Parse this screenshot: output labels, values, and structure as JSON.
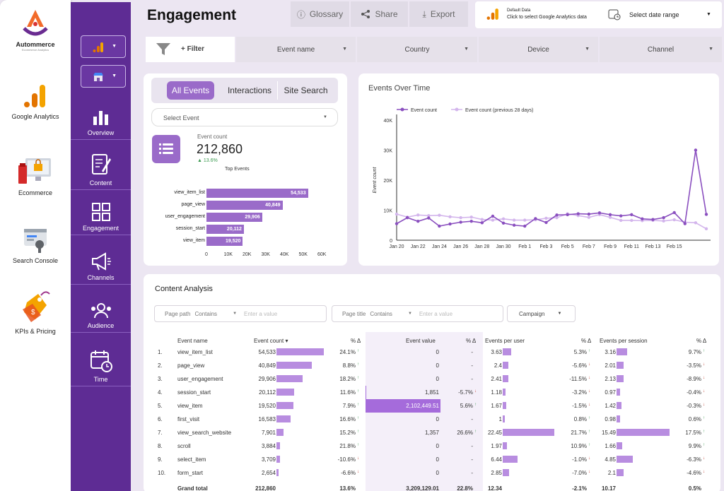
{
  "brand": {
    "name": "Autommerce",
    "tagline": "Ecommerce Analytics"
  },
  "apps": [
    {
      "label": "Google Analytics",
      "icon": "google-analytics-icon"
    },
    {
      "label": "Ecommerce",
      "icon": "ecommerce-icon"
    },
    {
      "label": "Search Console",
      "icon": "search-console-icon"
    },
    {
      "label": "KPIs & Pricing",
      "icon": "price-tag-icon"
    }
  ],
  "nav": [
    {
      "label": "Overview",
      "icon": "bar-chart-icon"
    },
    {
      "label": "Content",
      "icon": "document-pen-icon"
    },
    {
      "label": "Engagement",
      "icon": "grid-icon"
    },
    {
      "label": "Channels",
      "icon": "megaphone-icon"
    },
    {
      "label": "Audience",
      "icon": "people-icon"
    },
    {
      "label": "Time",
      "icon": "calendar-clock-icon"
    }
  ],
  "header": {
    "title": "Engagement",
    "glossary": "Glossary",
    "share": "Share",
    "export": "Export",
    "data_source_line1": "Default Data",
    "data_source_line2": "Click to select Google Analytics data",
    "date_range": "Select date range"
  },
  "filters": {
    "filter_label": "+ Filter",
    "event_name": "Event name",
    "country": "Country",
    "device": "Device",
    "channel": "Channel"
  },
  "events_panel": {
    "tabs": [
      "All Events",
      "Interactions",
      "Site Search"
    ],
    "select_event": "Select Event",
    "kpi_label": "Event count",
    "kpi_value": "212,860",
    "kpi_change": "13.6%",
    "top_events_title": "Top Events",
    "top_events": [
      {
        "name": "view_item_list",
        "value": 54533,
        "label": "54,533"
      },
      {
        "name": "page_view",
        "value": 40849,
        "label": "40,849"
      },
      {
        "name": "user_engagement",
        "value": 29906,
        "label": "29,906"
      },
      {
        "name": "session_start",
        "value": 20112,
        "label": "20,112"
      },
      {
        "name": "view_item",
        "value": 19520,
        "label": "19,520"
      }
    ],
    "x_ticks": [
      "0",
      "10K",
      "20K",
      "30K",
      "40K",
      "50K",
      "60K"
    ]
  },
  "chart_data": {
    "type": "line",
    "title": "Events Over Time",
    "ylabel": "Event count",
    "ylim": [
      0,
      40000
    ],
    "y_ticks": [
      "0",
      "10K",
      "20K",
      "30K",
      "40K"
    ],
    "x_ticks": [
      "Jan 20",
      "Jan 22",
      "Jan 24",
      "Jan 26",
      "Jan 28",
      "Jan 30",
      "Feb 1",
      "Feb 3",
      "Feb 5",
      "Feb 7",
      "Feb 9",
      "Feb 11",
      "Feb 13",
      "Feb 15"
    ],
    "series": [
      {
        "name": "Event count",
        "color": "#8a4fbf",
        "values": [
          5500,
          7500,
          6300,
          7400,
          4700,
          5400,
          6000,
          6300,
          5800,
          8000,
          5700,
          5000,
          4700,
          7200,
          5900,
          8400,
          8500,
          8800,
          8700,
          9100,
          8500,
          8100,
          8500,
          7100,
          6900,
          7500,
          9200,
          5500,
          30000,
          8600
        ]
      },
      {
        "name": "Event count (previous 28 days)",
        "color": "#d3b5ec",
        "values": [
          8700,
          7700,
          8400,
          8200,
          8300,
          7800,
          7500,
          7700,
          6900,
          6700,
          7100,
          6700,
          6700,
          6800,
          7300,
          7500,
          8800,
          8200,
          7600,
          8500,
          7600,
          6600,
          6600,
          6500,
          6600,
          6400,
          6800,
          6000,
          5800,
          3800
        ]
      }
    ]
  },
  "content": {
    "title": "Content Analysis",
    "page_path": "Page path",
    "page_path_op": "Contains",
    "page_path_placeholder": "Enter a value",
    "page_title": "Page title",
    "page_title_op": "Contains",
    "page_title_placeholder": "Enter a value",
    "campaign": "Campaign",
    "headers": [
      "Event name",
      "Event count ▾",
      "% Δ",
      "Event value",
      "% Δ",
      "Events per user",
      "% Δ",
      "Events per session",
      "% Δ"
    ],
    "rows": [
      {
        "n": "1.",
        "name": "view_item_list",
        "count": "54,533",
        "count_v": 54533,
        "cd": "24.1%",
        "cdu": true,
        "val": "0",
        "val_v": 0,
        "vd": "-",
        "vdu": null,
        "epu": "3.63",
        "epu_v": 3.63,
        "ud": "5.3%",
        "udu": true,
        "eps": "3.16",
        "eps_v": 3.16,
        "sd": "9.7%",
        "sdu": true
      },
      {
        "n": "2.",
        "name": "page_view",
        "count": "40,849",
        "count_v": 40849,
        "cd": "8.8%",
        "cdu": true,
        "val": "0",
        "val_v": 0,
        "vd": "-",
        "vdu": null,
        "epu": "2.4",
        "epu_v": 2.4,
        "ud": "-5.6%",
        "udu": false,
        "eps": "2.01",
        "eps_v": 2.01,
        "sd": "-3.5%",
        "sdu": false
      },
      {
        "n": "3.",
        "name": "user_engagement",
        "count": "29,906",
        "count_v": 29906,
        "cd": "18.2%",
        "cdu": true,
        "val": "0",
        "val_v": 0,
        "vd": "-",
        "vdu": null,
        "epu": "2.41",
        "epu_v": 2.41,
        "ud": "-11.5%",
        "udu": false,
        "eps": "2.13",
        "eps_v": 2.13,
        "sd": "-8.9%",
        "sdu": false
      },
      {
        "n": "4.",
        "name": "session_start",
        "count": "20,112",
        "count_v": 20112,
        "cd": "11.6%",
        "cdu": true,
        "val": "1,851",
        "val_v": 1851,
        "vd": "-5.7%",
        "vdu": false,
        "epu": "1.18",
        "epu_v": 1.18,
        "ud": "-3.2%",
        "udu": false,
        "eps": "0.97",
        "eps_v": 0.97,
        "sd": "-0.4%",
        "sdu": false
      },
      {
        "n": "5.",
        "name": "view_item",
        "count": "19,520",
        "count_v": 19520,
        "cd": "7.9%",
        "cdu": true,
        "val": "2,102,449.51",
        "val_v": 2102449.51,
        "vd": "5.6%",
        "vdu": true,
        "epu": "1.67",
        "epu_v": 1.67,
        "ud": "-1.5%",
        "udu": false,
        "eps": "1.42",
        "eps_v": 1.42,
        "sd": "-0.3%",
        "sdu": false
      },
      {
        "n": "6.",
        "name": "first_visit",
        "count": "16,583",
        "count_v": 16583,
        "cd": "16.6%",
        "cdu": true,
        "val": "0",
        "val_v": 0,
        "vd": "-",
        "vdu": null,
        "epu": "1",
        "epu_v": 1,
        "ud": "0.8%",
        "udu": true,
        "eps": "0.98",
        "eps_v": 0.98,
        "sd": "0.6%",
        "sdu": true
      },
      {
        "n": "7.",
        "name": "view_search_website",
        "count": "7,901",
        "count_v": 7901,
        "cd": "15.2%",
        "cdu": true,
        "val": "1,357",
        "val_v": 1357,
        "vd": "26.6%",
        "vdu": true,
        "epu": "22.45",
        "epu_v": 22.45,
        "ud": "21.7%",
        "udu": true,
        "eps": "15.49",
        "eps_v": 15.49,
        "sd": "17.5%",
        "sdu": true
      },
      {
        "n": "8.",
        "name": "scroll",
        "count": "3,884",
        "count_v": 3884,
        "cd": "21.8%",
        "cdu": true,
        "val": "0",
        "val_v": 0,
        "vd": "-",
        "vdu": null,
        "epu": "1.97",
        "epu_v": 1.97,
        "ud": "10.9%",
        "udu": true,
        "eps": "1.66",
        "eps_v": 1.66,
        "sd": "9.9%",
        "sdu": true
      },
      {
        "n": "9.",
        "name": "select_item",
        "count": "3,709",
        "count_v": 3709,
        "cd": "-10.6%",
        "cdu": false,
        "val": "0",
        "val_v": 0,
        "vd": "-",
        "vdu": null,
        "epu": "6.44",
        "epu_v": 6.44,
        "ud": "-1.0%",
        "udu": false,
        "eps": "4.85",
        "eps_v": 4.85,
        "sd": "-6.3%",
        "sdu": false
      },
      {
        "n": "10.",
        "name": "form_start",
        "count": "2,654",
        "count_v": 2654,
        "cd": "-6.6%",
        "cdu": false,
        "val": "0",
        "val_v": 0,
        "vd": "-",
        "vdu": null,
        "epu": "2.85",
        "epu_v": 2.85,
        "ud": "-7.0%",
        "udu": false,
        "eps": "2.1",
        "eps_v": 2.1,
        "sd": "-4.6%",
        "sdu": false
      }
    ],
    "total": {
      "label": "Grand total",
      "count": "212,860",
      "cd": "13.6%",
      "val": "3,209,129.01",
      "vd": "22.8%",
      "epu": "12.34",
      "ud": "-2.1%",
      "eps": "10.17",
      "sd": "0.5%"
    }
  }
}
